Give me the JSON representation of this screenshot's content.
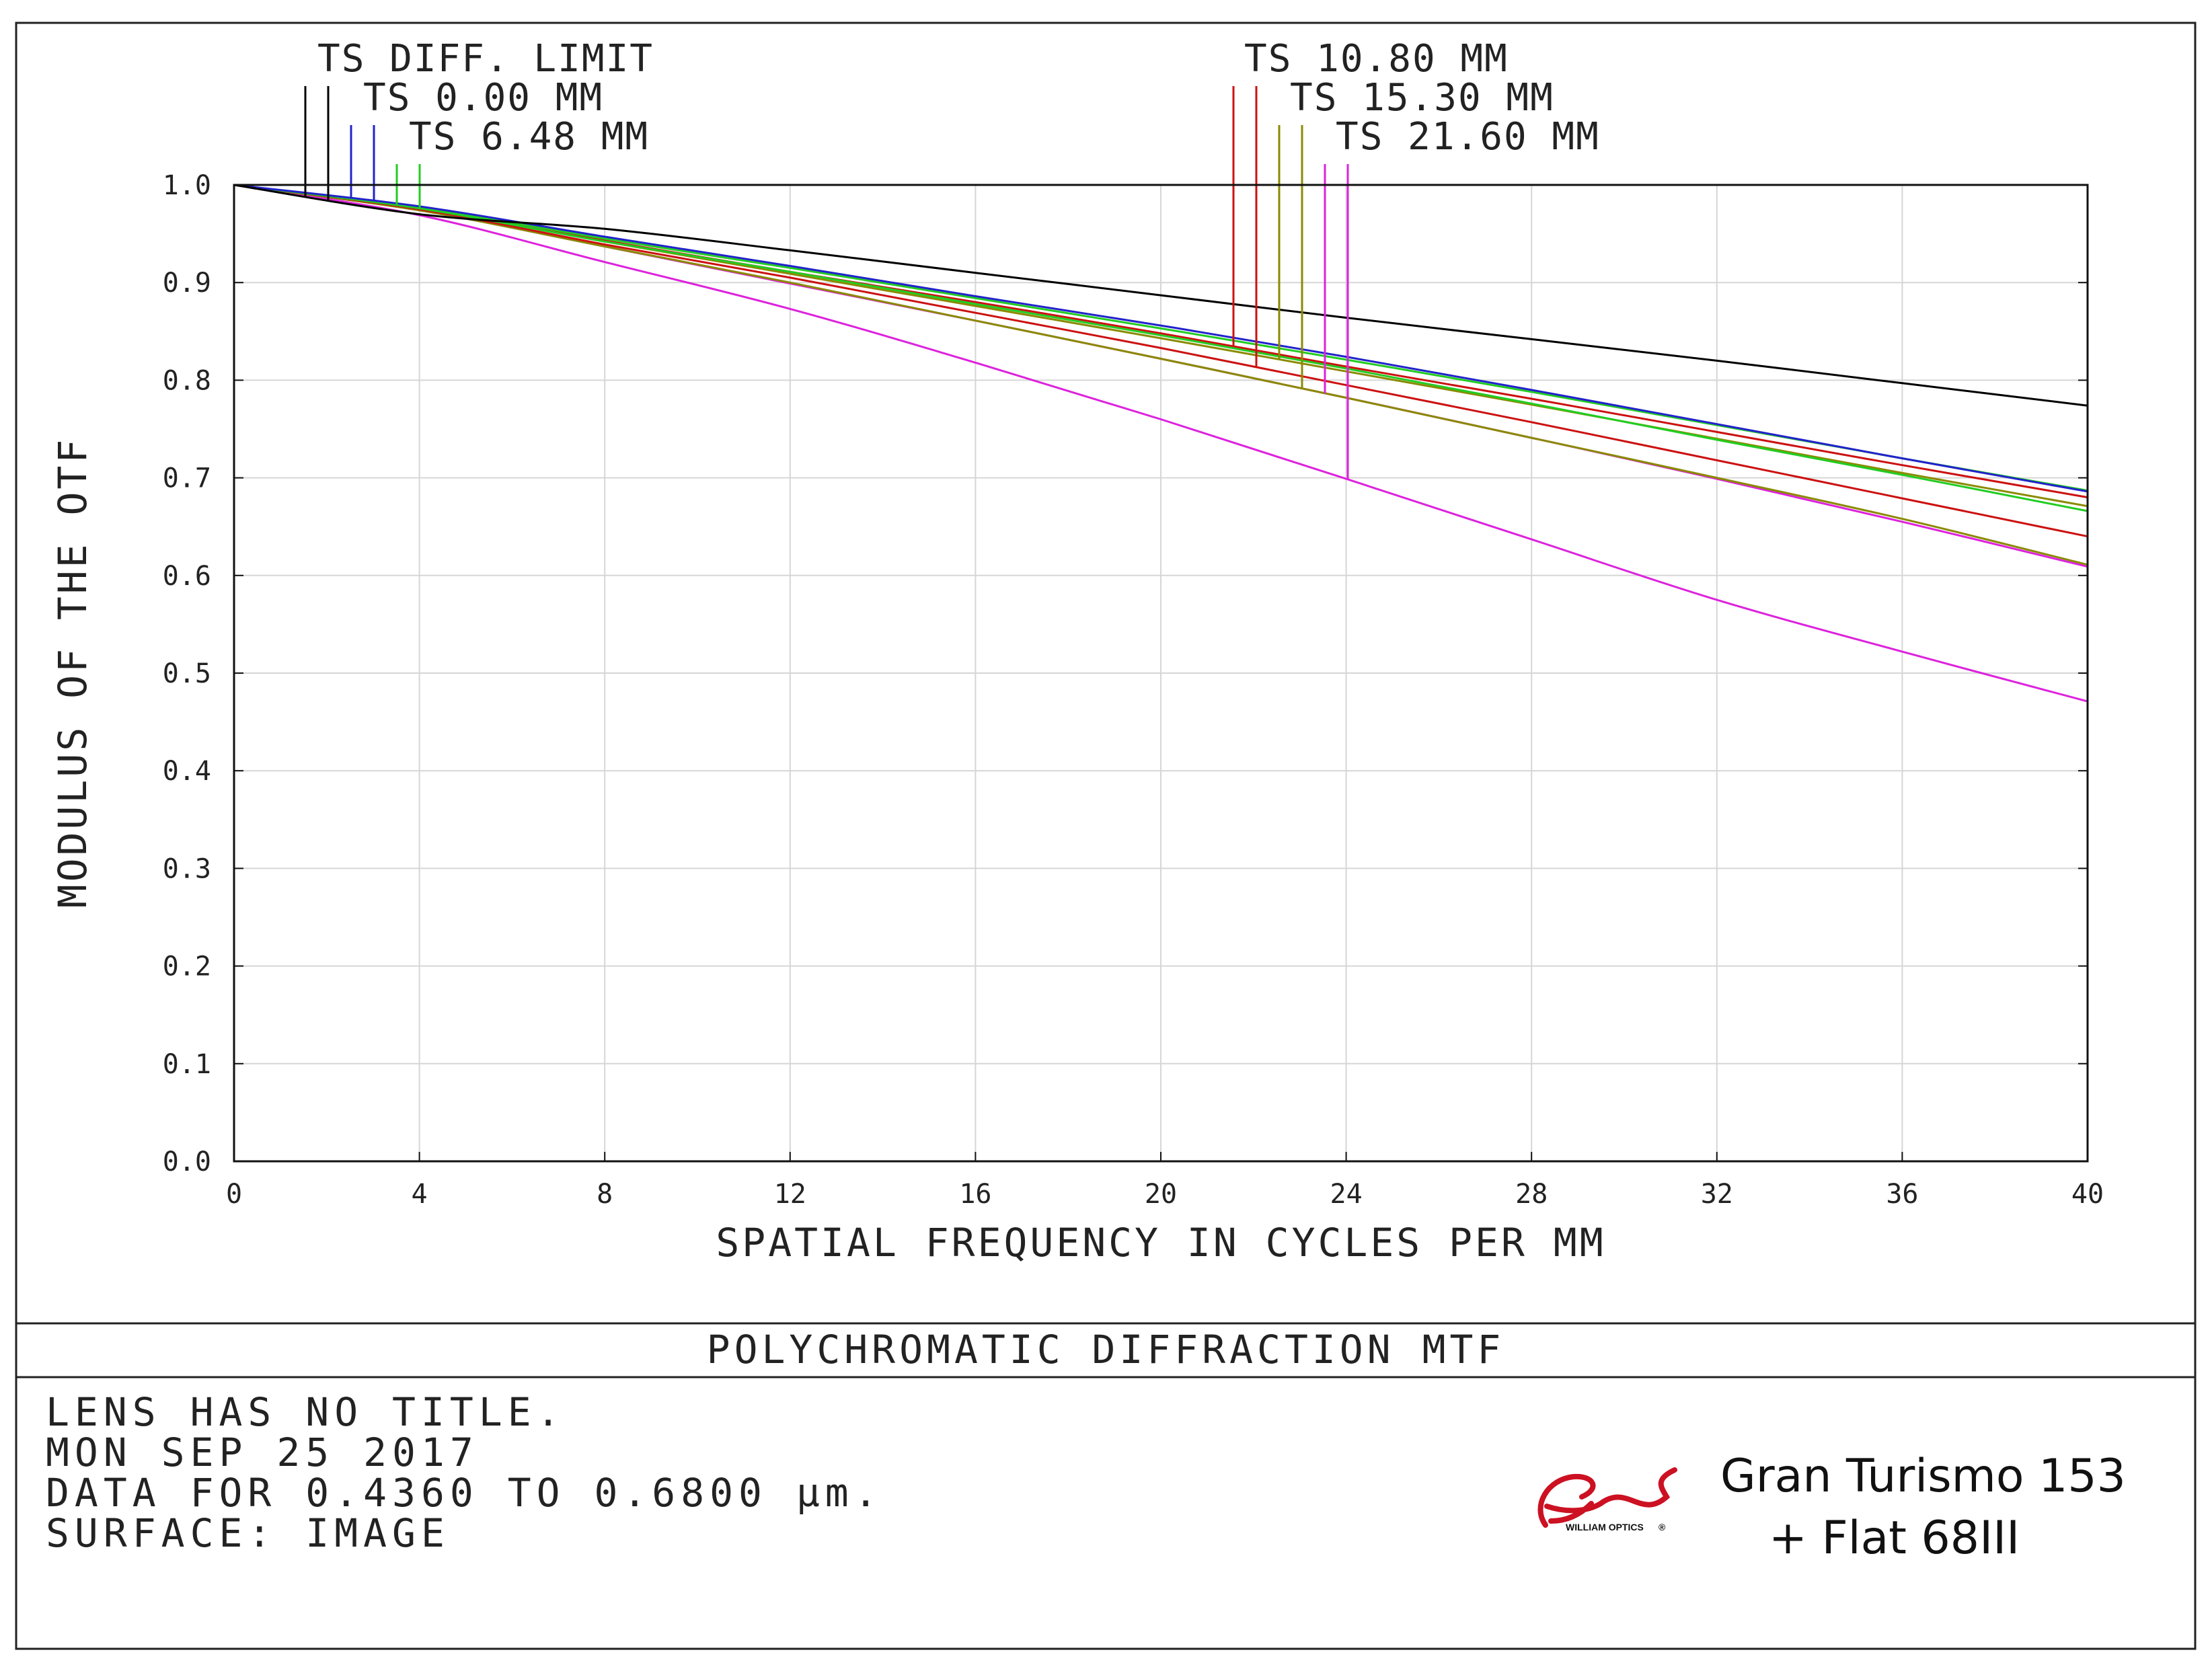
{
  "chart_data": {
    "type": "line",
    "title": "POLYCHROMATIC DIFFRACTION MTF",
    "xlabel": "SPATIAL FREQUENCY IN CYCLES PER MM",
    "ylabel": "MODULUS OF THE OTF",
    "xlim": [
      0,
      40
    ],
    "ylim": [
      0,
      1
    ],
    "x_ticks": [
      "0",
      "4",
      "8",
      "12",
      "16",
      "20",
      "24",
      "28",
      "32",
      "36",
      "40"
    ],
    "y_ticks": [
      "0.0",
      "0.1",
      "0.2",
      "0.3",
      "0.4",
      "0.5",
      "0.6",
      "0.7",
      "0.8",
      "0.9",
      "1.0"
    ],
    "grid": true,
    "x": [
      0,
      4,
      8,
      12,
      16,
      20,
      24,
      28,
      32,
      36,
      40
    ],
    "series": [
      {
        "name": "TS DIFF. LIMIT",
        "color": "#000000",
        "dashes": 2,
        "ts": [
          1.0,
          0.97,
          0.955,
          0.933,
          0.91,
          0.887,
          0.864,
          0.842,
          0.82,
          0.797,
          0.774
        ]
      },
      {
        "name": "TS 0.00 MM",
        "color": "#2222cc",
        "dashes": 2,
        "ts": [
          1.0,
          0.978,
          0.947,
          0.917,
          0.886,
          0.856,
          0.824,
          0.79,
          0.755,
          0.72,
          0.686
        ]
      },
      {
        "name": "TS 6.48 MM",
        "color": "#22cc22",
        "dashes": 2,
        "ts": [
          1.0,
          0.977,
          0.945,
          0.915,
          0.884,
          0.853,
          0.821,
          0.788,
          0.754,
          0.72,
          0.687
        ],
        "sag": [
          1.0,
          0.976,
          0.942,
          0.911,
          0.878,
          0.846,
          0.812,
          0.776,
          0.739,
          0.703,
          0.666
        ]
      },
      {
        "name": "TS 10.80 MM",
        "color": "#cc1111",
        "dashes": 2,
        "ts": [
          1.0,
          0.976,
          0.943,
          0.911,
          0.88,
          0.848,
          0.814,
          0.781,
          0.747,
          0.713,
          0.68
        ],
        "sag": [
          1.0,
          0.975,
          0.939,
          0.905,
          0.869,
          0.833,
          0.795,
          0.757,
          0.718,
          0.679,
          0.64
        ]
      },
      {
        "name": "TS 15.30 MM",
        "color": "#8a8a00",
        "dashes": 2,
        "ts": [
          1.0,
          0.976,
          0.942,
          0.909,
          0.876,
          0.843,
          0.809,
          0.775,
          0.74,
          0.705,
          0.671
        ],
        "sag": [
          1.0,
          0.974,
          0.937,
          0.9,
          0.861,
          0.822,
          0.782,
          0.741,
          0.7,
          0.658,
          0.611
        ]
      },
      {
        "name": "TS 21.60 MM",
        "color": "#dd22dd",
        "dashes": 2,
        "ts": [
          1.0,
          0.974,
          0.937,
          0.899,
          0.861,
          0.822,
          0.782,
          0.741,
          0.699,
          0.655,
          0.609
        ],
        "sag": [
          1.0,
          0.969,
          0.921,
          0.873,
          0.818,
          0.76,
          0.699,
          0.637,
          0.575,
          0.522,
          0.471
        ]
      }
    ]
  },
  "footer": {
    "plot_title": "POLYCHROMATIC DIFFRACTION MTF",
    "info_lines": [
      "LENS HAS NO TITLE.",
      "MON SEP 25 2017",
      "DATA FOR 0.4360 TO 0.6800 µm.",
      "SURFACE: IMAGE"
    ]
  },
  "brand": {
    "logo_text": "WILLIAM OPTICS",
    "logo_mark": "®",
    "logo_color": "#cc1122",
    "product_line1": "Gran Turismo 153",
    "product_line2": "+  Flat 68III"
  }
}
